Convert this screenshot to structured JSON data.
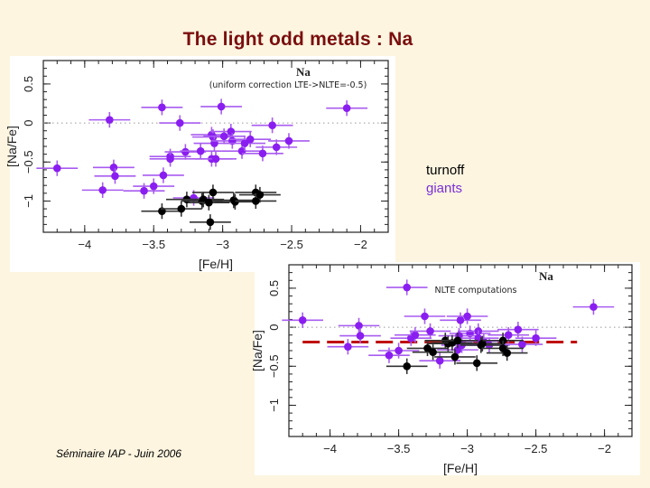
{
  "slide": {
    "title": "The light odd metals :  Na",
    "footer": "Séminaire IAP -   Juin 2006",
    "legend": {
      "turnoff": "turnoff",
      "giants": "giants"
    },
    "colors": {
      "title": "#7a0e0e",
      "background": "#fdf5e0",
      "giants": "#8a1ef0",
      "turnoff": "#000000",
      "fit_line": "#c01010"
    }
  },
  "chart_data": [
    {
      "type": "scatter",
      "title": "Na",
      "subtitle": "(uniform correction LTE->NLTE=-0.5)",
      "xlabel": "[Fe/H]",
      "ylabel": "[Na/Fe]",
      "xlim": [
        -4.3,
        -1.8
      ],
      "ylim": [
        -1.4,
        0.8
      ],
      "xticks": [
        -4,
        -3.5,
        -3,
        -2.5,
        -2
      ],
      "xtick_labels": [
        "−4",
        "−3.5",
        "−3",
        "−2.5",
        "−2"
      ],
      "yticks": [
        0.5,
        0,
        -0.5,
        -1
      ],
      "ytick_labels": [
        "0.5",
        "0",
        "−0.5",
        "−1"
      ],
      "reference_line": {
        "y": 0,
        "style": "dotted"
      },
      "x_err": 0.1,
      "y_err": 0.1,
      "series": [
        {
          "name": "giants",
          "color": "#8a1ef0",
          "points": [
            [
              -4.2,
              -0.58
            ],
            [
              -3.82,
              0.04
            ],
            [
              -3.79,
              -0.57
            ],
            [
              -3.78,
              -0.68
            ],
            [
              -3.87,
              -0.86
            ],
            [
              -3.57,
              -0.87
            ],
            [
              -3.5,
              -0.81
            ],
            [
              -3.43,
              -0.67
            ],
            [
              -3.44,
              0.2
            ],
            [
              -3.38,
              -0.43
            ],
            [
              -3.38,
              -0.46
            ],
            [
              -3.31,
              0.0
            ],
            [
              -3.27,
              -0.37
            ],
            [
              -3.16,
              -0.36
            ],
            [
              -3.21,
              -0.96
            ],
            [
              -3.08,
              -0.15
            ],
            [
              -3.07,
              -0.18
            ],
            [
              -3.06,
              -0.26
            ],
            [
              -3.08,
              -0.46
            ],
            [
              -3.05,
              -0.46
            ],
            [
              -3.01,
              0.21
            ],
            [
              -2.99,
              -0.17
            ],
            [
              -2.94,
              -0.11
            ],
            [
              -2.93,
              -0.23
            ],
            [
              -2.86,
              -0.36
            ],
            [
              -2.84,
              -0.26
            ],
            [
              -2.8,
              -0.21
            ],
            [
              -2.71,
              -0.39
            ],
            [
              -2.64,
              -0.03
            ],
            [
              -2.61,
              -0.31
            ],
            [
              -2.52,
              -0.23
            ],
            [
              -2.1,
              0.19
            ]
          ]
        },
        {
          "name": "turnoff",
          "color": "#000000",
          "points": [
            [
              -3.44,
              -1.13
            ],
            [
              -3.3,
              -1.1
            ],
            [
              -3.26,
              -0.98
            ],
            [
              -3.15,
              -1.0
            ],
            [
              -3.14,
              -0.98
            ],
            [
              -3.1,
              -1.02
            ],
            [
              -3.07,
              -0.89
            ],
            [
              -3.09,
              -1.27
            ],
            [
              -2.92,
              -0.99
            ],
            [
              -2.91,
              -1.01
            ],
            [
              -2.76,
              -0.89
            ],
            [
              -2.73,
              -0.92
            ],
            [
              -2.76,
              -1.0
            ]
          ]
        }
      ]
    },
    {
      "type": "scatter",
      "title": "Na",
      "subtitle": "NLTE computations",
      "xlabel": "[Fe/H]",
      "ylabel": "[Na/Fe]",
      "xlim": [
        -4.3,
        -1.8
      ],
      "ylim": [
        -1.4,
        0.8
      ],
      "xticks": [
        -4,
        -3.5,
        -3,
        -2.5,
        -2
      ],
      "xtick_labels": [
        "−4",
        "−3.5",
        "−3",
        "−2.5",
        "−2"
      ],
      "yticks": [
        0.5,
        0,
        -0.5,
        -1
      ],
      "ytick_labels": [
        "0.5",
        "0",
        "−0.5",
        "−1"
      ],
      "reference_line": {
        "y": 0,
        "style": "dotted"
      },
      "fit_line": {
        "y": -0.19,
        "x_range": [
          -4.2,
          -2.2
        ],
        "style": "dashed",
        "color": "#c01010"
      },
      "x_err": 0.1,
      "y_err": 0.1,
      "series": [
        {
          "name": "giants",
          "color": "#8a1ef0",
          "points": [
            [
              -4.2,
              0.09
            ],
            [
              -3.79,
              0.02
            ],
            [
              -3.78,
              -0.11
            ],
            [
              -3.87,
              -0.25
            ],
            [
              -3.57,
              -0.36
            ],
            [
              -3.5,
              -0.3
            ],
            [
              -3.44,
              0.51
            ],
            [
              -3.41,
              -0.14
            ],
            [
              -3.38,
              -0.1
            ],
            [
              -3.31,
              0.14
            ],
            [
              -3.27,
              -0.05
            ],
            [
              -3.2,
              -0.43
            ],
            [
              -3.05,
              0.09
            ],
            [
              -3.0,
              0.14
            ],
            [
              -2.98,
              -0.08
            ],
            [
              -2.92,
              -0.05
            ],
            [
              -3.07,
              -0.29
            ],
            [
              -3.04,
              -0.23
            ],
            [
              -2.7,
              -0.1
            ],
            [
              -2.63,
              -0.03
            ],
            [
              -2.6,
              -0.22
            ],
            [
              -2.5,
              -0.14
            ],
            [
              -2.08,
              0.26
            ],
            [
              -3.06,
              -0.11
            ],
            [
              -2.88,
              -0.18
            ],
            [
              -2.84,
              -0.23
            ],
            [
              -2.92,
              -0.14
            ]
          ]
        },
        {
          "name": "turnoff",
          "color": "#000000",
          "points": [
            [
              -3.44,
              -0.5
            ],
            [
              -3.29,
              -0.27
            ],
            [
              -3.25,
              -0.32
            ],
            [
              -3.16,
              -0.17
            ],
            [
              -3.14,
              -0.21
            ],
            [
              -3.11,
              -0.2
            ],
            [
              -3.09,
              -0.38
            ],
            [
              -3.07,
              -0.17
            ],
            [
              -2.93,
              -0.46
            ],
            [
              -2.9,
              -0.23
            ],
            [
              -2.89,
              -0.21
            ],
            [
              -2.74,
              -0.17
            ],
            [
              -2.74,
              -0.27
            ],
            [
              -2.71,
              -0.33
            ]
          ]
        }
      ]
    }
  ]
}
